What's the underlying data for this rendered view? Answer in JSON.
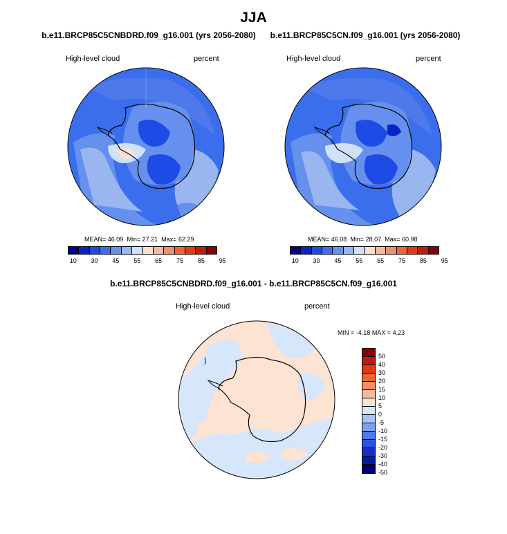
{
  "title": "JJA",
  "panels": [
    {
      "run_title": "b.e11.BRCP85C5CNBDRD.f09_g16.001 (yrs 2056-2080)",
      "variable": "High-level cloud",
      "units": "percent",
      "mean_label": "MEAN=",
      "mean": "46.09",
      "min_label": "Min=",
      "min": "27.21",
      "max_label": "Max=",
      "max": "62.29"
    },
    {
      "run_title": "b.e11.BRCP85C5CN.f09_g16.001 (yrs 2056-2080)",
      "variable": "High-level cloud",
      "units": "percent",
      "mean_label": "MEAN=",
      "mean": "46.08",
      "min_label": "Min=",
      "min": "28.07",
      "max_label": "Max=",
      "max": "60.98"
    }
  ],
  "diff": {
    "title": "b.e11.BRCP85C5CNBDRD.f09_g16.001 - b.e11.BRCP85C5CN.f09_g16.001",
    "variable": "High-level cloud",
    "units": "percent",
    "min_label": "MIN =",
    "min": "-4.18",
    "max_label": "MAX =",
    "max": "4.23"
  },
  "colorbar_top": {
    "colors": [
      "#00008f",
      "#0a22c9",
      "#1e4be6",
      "#3a6eec",
      "#6690ee",
      "#9ab6f0",
      "#cfe2fa",
      "#fde0d2",
      "#f6b99d",
      "#f28e68",
      "#ee6431",
      "#de3c10",
      "#bc1e04",
      "#8a0000"
    ],
    "labels": [
      "10",
      "30",
      "45",
      "55",
      "65",
      "75",
      "85",
      "95"
    ]
  },
  "colorbar_diff": {
    "colors": [
      "#8a0000",
      "#bc1e04",
      "#de3c10",
      "#ee6431",
      "#f28e68",
      "#f6b99d",
      "#fde3d2",
      "#d6e6fb",
      "#a8c4f3",
      "#7aa0ee",
      "#4f79ea",
      "#2a55e3",
      "#1230c8",
      "#001c9f",
      "#000070"
    ],
    "labels": [
      "50",
      "40",
      "30",
      "20",
      "15",
      "10",
      "5",
      "0",
      "-5",
      "-10",
      "-15",
      "-20",
      "-30",
      "-40",
      "-50"
    ]
  },
  "chart_data": [
    {
      "type": "heatmap",
      "title": "b.e11.BRCP85C5CNBDRD.f09_g16.001 (yrs 2056-2080)",
      "variable": "High-level cloud",
      "units": "percent",
      "projection": "south polar stereographic",
      "mean": 46.09,
      "min": 27.21,
      "max": 62.29,
      "colorbar_levels": [
        10,
        15,
        20,
        25,
        30,
        35,
        40,
        45,
        50,
        55,
        60,
        65,
        70,
        75,
        80,
        85,
        90,
        95
      ]
    },
    {
      "type": "heatmap",
      "title": "b.e11.BRCP85C5CN.f09_g16.001 (yrs 2056-2080)",
      "variable": "High-level cloud",
      "units": "percent",
      "projection": "south polar stereographic",
      "mean": 46.08,
      "min": 28.07,
      "max": 60.98
    },
    {
      "type": "heatmap",
      "title": "b.e11.BRCP85C5CNBDRD.f09_g16.001 - b.e11.BRCP85C5CN.f09_g16.001",
      "variable": "High-level cloud",
      "units": "percent",
      "projection": "south polar stereographic",
      "min": -4.18,
      "max": 4.23,
      "colorbar_levels": [
        -50,
        -40,
        -30,
        -20,
        -15,
        -10,
        -5,
        0,
        5,
        10,
        15,
        20,
        30,
        40,
        50
      ]
    }
  ]
}
